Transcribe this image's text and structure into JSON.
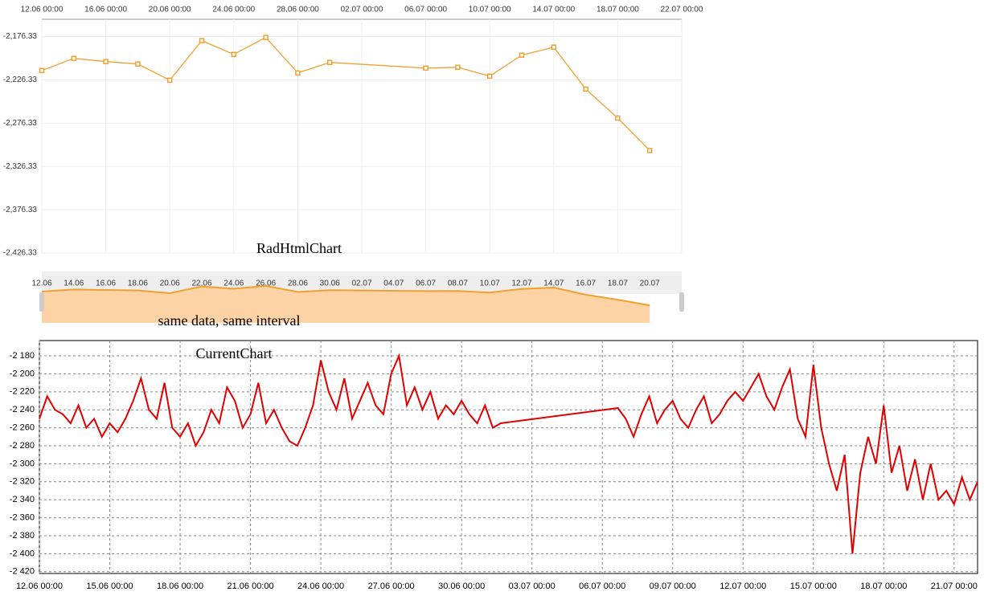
{
  "chart_data": [
    {
      "type": "line",
      "annotation": "RadHtmlChart",
      "color": "#f0a030",
      "x": [
        "12.06 00:00",
        "14.06 00:00",
        "16.06 00:00",
        "18.06 00:00",
        "20.06 00:00",
        "22.06 00:00",
        "24.06 00:00",
        "26.06 00:00",
        "28.06 00:00",
        "30.06 00:00",
        "06.07 00:00",
        "08.07 00:00",
        "10.07 00:00",
        "12.07 00:00",
        "14.07 00:00",
        "16.07 00:00",
        "18.07 00:00",
        "20.07 00:00"
      ],
      "values": [
        -2215.5,
        -2201.5,
        -2205.2,
        -2208.0,
        -2226.7,
        -2181.0,
        -2196.9,
        -2177.3,
        -2218.3,
        -2206.2,
        -2212.7,
        -2211.8,
        -2222.0,
        -2197.8,
        -2188.5,
        -2237.0,
        -2270.5,
        -2307.9
      ],
      "xlim": [
        "12.06 00:00",
        "22.07 00:00"
      ],
      "xticks": [
        "12.06 00:00",
        "16.06 00:00",
        "20.06 00:00",
        "24.06 00:00",
        "28.06 00:00",
        "02.07 00:00",
        "06.07 00:00",
        "10.07 00:00",
        "14.07 00:00",
        "18.07 00:00",
        "22.07 00:00"
      ],
      "ylim": [
        -2426.33,
        -2156.33
      ],
      "yticks": [
        {
          "value": -2426.33,
          "label": "-2,426.33"
        },
        {
          "value": -2376.33,
          "label": "-2,376.33"
        },
        {
          "value": -2326.33,
          "label": "-2,326.33"
        },
        {
          "value": -2276.33,
          "label": "-2,276.33"
        },
        {
          "value": -2226.33,
          "label": "-2,226.33"
        },
        {
          "value": -2176.33,
          "label": "-2,176.33"
        }
      ],
      "grid": true,
      "navigator": {
        "caption": "same data, same interval",
        "fill": "#fdd3a5",
        "xticks": [
          "12.06",
          "14.06",
          "16.06",
          "18.06",
          "20.06",
          "22.06",
          "24.06",
          "26.06",
          "28.06",
          "30.06",
          "02.07",
          "04.07",
          "06.07",
          "08.07",
          "10.07",
          "12.07",
          "14.07",
          "16.07",
          "18.07",
          "20.07"
        ]
      }
    },
    {
      "type": "line",
      "annotation": "CurrentChart",
      "color": "#e00000",
      "x": [
        "12.06 00:00",
        "12.06 08:00",
        "12.06 16:00",
        "13.06 00:00",
        "13.06 08:00",
        "13.06 16:00",
        "14.06 00:00",
        "14.06 08:00",
        "14.06 16:00",
        "15.06 00:00",
        "15.06 08:00",
        "15.06 16:00",
        "16.06 00:00",
        "16.06 08:00",
        "16.06 16:00",
        "17.06 00:00",
        "17.06 08:00",
        "17.06 16:00",
        "18.06 00:00",
        "18.06 08:00",
        "18.06 16:00",
        "19.06 00:00",
        "19.06 08:00",
        "19.06 16:00",
        "20.06 00:00",
        "20.06 08:00",
        "20.06 16:00",
        "21.06 00:00",
        "21.06 08:00",
        "21.06 16:00",
        "22.06 00:00",
        "22.06 08:00",
        "22.06 16:00",
        "23.06 00:00",
        "23.06 08:00",
        "23.06 16:00",
        "24.06 00:00",
        "24.06 08:00",
        "24.06 16:00",
        "25.06 00:00",
        "25.06 08:00",
        "25.06 16:00",
        "26.06 00:00",
        "26.06 08:00",
        "26.06 16:00",
        "27.06 00:00",
        "27.06 08:00",
        "27.06 16:00",
        "28.06 00:00",
        "28.06 08:00",
        "28.06 16:00",
        "29.06 00:00",
        "29.06 08:00",
        "29.06 16:00",
        "30.06 00:00",
        "30.06 08:00",
        "30.06 16:00",
        "01.07 00:00",
        "01.07 08:00",
        "01.07 16:00",
        "06.07 16:00",
        "07.07 00:00",
        "07.07 08:00",
        "07.07 16:00",
        "08.07 00:00",
        "08.07 08:00",
        "08.07 16:00",
        "09.07 00:00",
        "09.07 08:00",
        "09.07 16:00",
        "10.07 00:00",
        "10.07 08:00",
        "10.07 16:00",
        "11.07 00:00",
        "11.07 08:00",
        "11.07 16:00",
        "12.07 00:00",
        "12.07 08:00",
        "12.07 16:00",
        "13.07 00:00",
        "13.07 08:00",
        "13.07 16:00",
        "14.07 00:00",
        "14.07 08:00",
        "14.07 16:00",
        "15.07 00:00",
        "15.07 08:00",
        "15.07 16:00",
        "16.07 00:00",
        "16.07 08:00",
        "16.07 16:00",
        "17.07 00:00",
        "17.07 08:00",
        "17.07 16:00",
        "18.07 00:00",
        "18.07 08:00",
        "18.07 16:00",
        "19.07 00:00",
        "19.07 08:00",
        "19.07 16:00",
        "20.07 00:00",
        "20.07 08:00",
        "20.07 16:00",
        "21.07 00:00",
        "21.07 08:00",
        "21.07 16:00",
        "22.07 00:00"
      ],
      "values": [
        -2250,
        -2225,
        -2240,
        -2245,
        -2255,
        -2235,
        -2260,
        -2250,
        -2270,
        -2255,
        -2265,
        -2250,
        -2230,
        -2205,
        -2240,
        -2250,
        -2210,
        -2260,
        -2270,
        -2255,
        -2280,
        -2265,
        -2240,
        -2255,
        -2215,
        -2230,
        -2260,
        -2245,
        -2210,
        -2255,
        -2240,
        -2260,
        -2275,
        -2280,
        -2260,
        -2235,
        -2185,
        -2220,
        -2240,
        -2205,
        -2250,
        -2230,
        -2210,
        -2235,
        -2245,
        -2200,
        -2180,
        -2235,
        -2215,
        -2240,
        -2220,
        -2250,
        -2235,
        -2245,
        -2230,
        -2245,
        -2255,
        -2235,
        -2260,
        -2255,
        -2238,
        -2250,
        -2270,
        -2245,
        -2225,
        -2255,
        -2240,
        -2230,
        -2250,
        -2260,
        -2240,
        -2225,
        -2255,
        -2245,
        -2230,
        -2220,
        -2230,
        -2215,
        -2200,
        -2225,
        -2240,
        -2215,
        -2195,
        -2250,
        -2270,
        -2190,
        -2260,
        -2300,
        -2330,
        -2290,
        -2400,
        -2310,
        -2270,
        -2300,
        -2235,
        -2310,
        -2280,
        -2330,
        -2295,
        -2340,
        -2300,
        -2340,
        -2330,
        -2345,
        -2315,
        -2340,
        -2320
      ],
      "xlim": [
        "12.06 00:00",
        "22.07 00:00"
      ],
      "xticks": [
        "12.06 00:00",
        "15.06 00:00",
        "18.06 00:00",
        "21.06 00:00",
        "24.06 00:00",
        "27.06 00:00",
        "30.06 00:00",
        "03.07 00:00",
        "06.07 00:00",
        "09.07 00:00",
        "12.07 00:00",
        "15.07 00:00",
        "18.07 00:00",
        "21.07 00:00"
      ],
      "ylim": [
        -2422,
        -2163
      ],
      "yticks": [
        {
          "value": -2420,
          "label": "-2 420"
        },
        {
          "value": -2400,
          "label": "-2 400"
        },
        {
          "value": -2380,
          "label": "-2 380"
        },
        {
          "value": -2360,
          "label": "-2 360"
        },
        {
          "value": -2340,
          "label": "-2 340"
        },
        {
          "value": -2320,
          "label": "-2 320"
        },
        {
          "value": -2300,
          "label": "-2 300"
        },
        {
          "value": -2280,
          "label": "-2 280"
        },
        {
          "value": -2260,
          "label": "-2 260"
        },
        {
          "value": -2240,
          "label": "-2 240"
        },
        {
          "value": -2220,
          "label": "-2 220"
        },
        {
          "value": -2200,
          "label": "-2 200"
        },
        {
          "value": -2180,
          "label": "-2 180"
        }
      ],
      "grid": true
    }
  ]
}
